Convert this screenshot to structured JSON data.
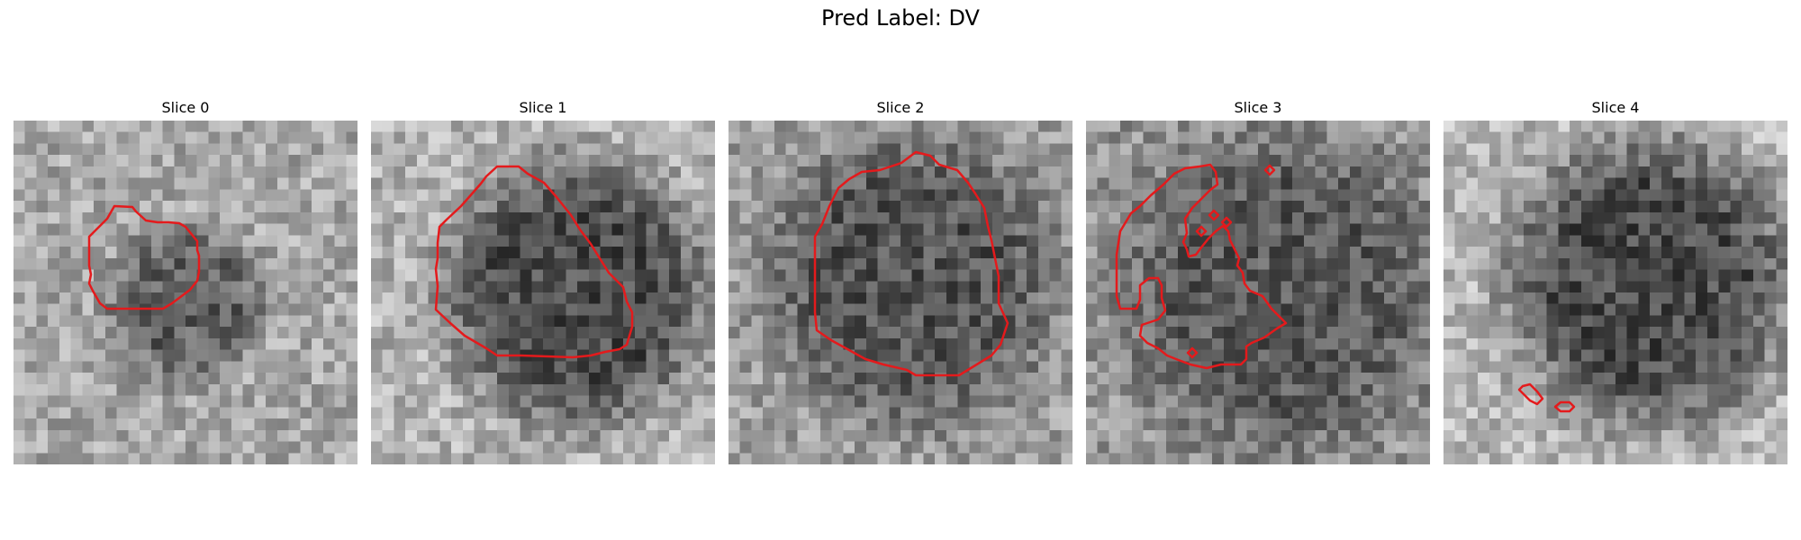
{
  "figure": {
    "title": "Pred Label: DV",
    "contour_color": "#e41a1c"
  },
  "slices": [
    {
      "label": "Slice 0"
    },
    {
      "label": "Slice 1"
    },
    {
      "label": "Slice 2"
    },
    {
      "label": "Slice 3"
    },
    {
      "label": "Slice 4"
    }
  ]
}
